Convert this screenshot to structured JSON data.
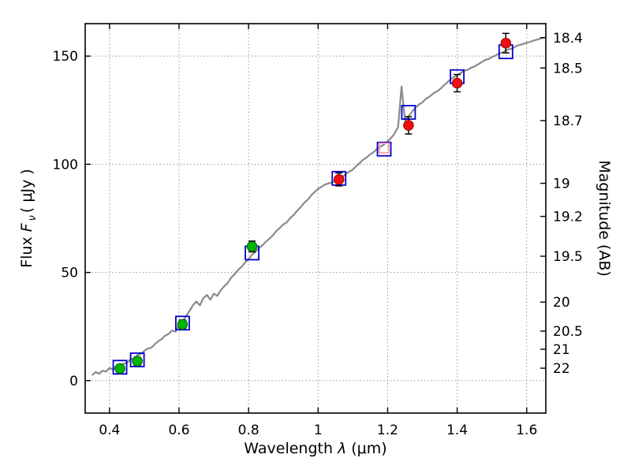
{
  "figure": {
    "background": "#ffffff",
    "frame_color": "#000000",
    "grid_color": "#888888",
    "tick_color": "#000000"
  },
  "chart_data": {
    "type": "line",
    "title": "",
    "xlabel": {
      "prefix": "Wavelength",
      "symbol": "λ",
      "suffix": "(μm)"
    },
    "ylabel_left": {
      "word": "Flux",
      "symbol": "F",
      "subscript": "ν",
      "unit": "( μJy )"
    },
    "ylabel_right": "Magnitude (AB)",
    "xlim": [
      0.33,
      1.655
    ],
    "ylim": [
      -15,
      165
    ],
    "x_ticks": [
      0.4,
      0.6,
      0.8,
      1.0,
      1.2,
      1.4,
      1.6
    ],
    "x_tick_labels": [
      "0.4",
      "0.6",
      "0.8",
      "1",
      "1.2",
      "1.4",
      "1.6"
    ],
    "y_ticks": [
      0,
      50,
      100,
      150
    ],
    "y_tick_labels": [
      "0",
      "50",
      "100",
      "150"
    ],
    "right_ticks": [
      {
        "label": "18.4",
        "flux": 158.5
      },
      {
        "label": "18.5",
        "flux": 144.5
      },
      {
        "label": "18.7",
        "flux": 120.2
      },
      {
        "label": "19",
        "flux": 91.2
      },
      {
        "label": "19.2",
        "flux": 75.9
      },
      {
        "label": "19.5",
        "flux": 57.5
      },
      {
        "label": "20",
        "flux": 36.3
      },
      {
        "label": "20.5",
        "flux": 22.9
      },
      {
        "label": "21",
        "flux": 14.5
      },
      {
        "label": "22",
        "flux": 5.75
      }
    ],
    "grid": {
      "on": true,
      "style": "dotted",
      "color": "#888888"
    },
    "spectrum": {
      "name": "model-spectrum",
      "color": "#8a8a8a",
      "points": [
        [
          0.35,
          2.5
        ],
        [
          0.36,
          4.0
        ],
        [
          0.37,
          3.2
        ],
        [
          0.38,
          4.6
        ],
        [
          0.39,
          4.2
        ],
        [
          0.4,
          5.8
        ],
        [
          0.41,
          5.2
        ],
        [
          0.42,
          6.8
        ],
        [
          0.43,
          6.4
        ],
        [
          0.44,
          7.8
        ],
        [
          0.45,
          8.2
        ],
        [
          0.46,
          9.8
        ],
        [
          0.47,
          10.2
        ],
        [
          0.48,
          11.8
        ],
        [
          0.49,
          12.3
        ],
        [
          0.5,
          13.8
        ],
        [
          0.51,
          14.8
        ],
        [
          0.52,
          15.2
        ],
        [
          0.53,
          16.8
        ],
        [
          0.54,
          18.2
        ],
        [
          0.55,
          19.2
        ],
        [
          0.56,
          20.8
        ],
        [
          0.57,
          21.6
        ],
        [
          0.58,
          23.2
        ],
        [
          0.59,
          22.6
        ],
        [
          0.6,
          25.8
        ],
        [
          0.61,
          27.2
        ],
        [
          0.62,
          29.8
        ],
        [
          0.63,
          32.2
        ],
        [
          0.64,
          34.8
        ],
        [
          0.65,
          36.6
        ],
        [
          0.66,
          34.8
        ],
        [
          0.67,
          38.2
        ],
        [
          0.68,
          39.6
        ],
        [
          0.69,
          37.4
        ],
        [
          0.7,
          40.2
        ],
        [
          0.71,
          39.2
        ],
        [
          0.72,
          41.8
        ],
        [
          0.73,
          43.6
        ],
        [
          0.74,
          45.2
        ],
        [
          0.75,
          47.6
        ],
        [
          0.76,
          49.2
        ],
        [
          0.77,
          51.2
        ],
        [
          0.78,
          52.6
        ],
        [
          0.79,
          54.6
        ],
        [
          0.8,
          56.2
        ],
        [
          0.81,
          58.2
        ],
        [
          0.82,
          59.6
        ],
        [
          0.83,
          61.2
        ],
        [
          0.84,
          62.6
        ],
        [
          0.85,
          64.2
        ],
        [
          0.86,
          65.6
        ],
        [
          0.87,
          67.2
        ],
        [
          0.88,
          69.2
        ],
        [
          0.89,
          70.6
        ],
        [
          0.9,
          72.2
        ],
        [
          0.91,
          73.2
        ],
        [
          0.92,
          75.2
        ],
        [
          0.93,
          76.6
        ],
        [
          0.94,
          78.6
        ],
        [
          0.95,
          80.2
        ],
        [
          0.96,
          82.2
        ],
        [
          0.97,
          83.6
        ],
        [
          0.98,
          85.6
        ],
        [
          0.99,
          87.2
        ],
        [
          1.0,
          88.6
        ],
        [
          1.01,
          89.6
        ],
        [
          1.02,
          90.6
        ],
        [
          1.03,
          91.2
        ],
        [
          1.04,
          91.6
        ],
        [
          1.05,
          92.6
        ],
        [
          1.06,
          93.2
        ],
        [
          1.07,
          94.2
        ],
        [
          1.08,
          95.6
        ],
        [
          1.09,
          96.6
        ],
        [
          1.1,
          97.6
        ],
        [
          1.11,
          99.2
        ],
        [
          1.12,
          100.6
        ],
        [
          1.13,
          102.2
        ],
        [
          1.14,
          103.2
        ],
        [
          1.15,
          104.6
        ],
        [
          1.16,
          105.6
        ],
        [
          1.17,
          107.2
        ],
        [
          1.18,
          108.2
        ],
        [
          1.19,
          109.2
        ],
        [
          1.2,
          110.6
        ],
        [
          1.21,
          112.2
        ],
        [
          1.22,
          114.2
        ],
        [
          1.23,
          117.2
        ],
        [
          1.24,
          136.0
        ],
        [
          1.25,
          120.2
        ],
        [
          1.26,
          122.2
        ],
        [
          1.27,
          124.2
        ],
        [
          1.28,
          126.2
        ],
        [
          1.29,
          127.6
        ],
        [
          1.3,
          128.6
        ],
        [
          1.31,
          130.2
        ],
        [
          1.32,
          131.2
        ],
        [
          1.33,
          132.6
        ],
        [
          1.34,
          133.6
        ],
        [
          1.35,
          134.6
        ],
        [
          1.36,
          136.2
        ],
        [
          1.37,
          137.6
        ],
        [
          1.38,
          139.2
        ],
        [
          1.39,
          140.2
        ],
        [
          1.4,
          141.2
        ],
        [
          1.41,
          142.2
        ],
        [
          1.42,
          143.2
        ],
        [
          1.43,
          143.6
        ],
        [
          1.44,
          144.6
        ],
        [
          1.45,
          145.2
        ],
        [
          1.46,
          146.2
        ],
        [
          1.47,
          147.2
        ],
        [
          1.48,
          148.2
        ],
        [
          1.49,
          148.6
        ],
        [
          1.5,
          149.6
        ],
        [
          1.51,
          150.2
        ],
        [
          1.52,
          151.2
        ],
        [
          1.53,
          151.6
        ],
        [
          1.54,
          152.6
        ],
        [
          1.55,
          153.2
        ],
        [
          1.56,
          153.6
        ],
        [
          1.57,
          154.6
        ],
        [
          1.58,
          155.2
        ],
        [
          1.59,
          155.6
        ],
        [
          1.6,
          156.2
        ],
        [
          1.61,
          156.6
        ],
        [
          1.62,
          157.2
        ],
        [
          1.63,
          157.6
        ],
        [
          1.64,
          158.2
        ],
        [
          1.65,
          158.6
        ]
      ]
    },
    "series": [
      {
        "name": "model-photometry",
        "marker": "square-open",
        "color": "#0000cc",
        "size": 17,
        "points": [
          [
            0.43,
            6.2
          ],
          [
            0.48,
            9.6
          ],
          [
            0.61,
            26.6
          ],
          [
            0.81,
            59.0
          ],
          [
            1.06,
            93.5
          ],
          [
            1.19,
            107.0
          ],
          [
            1.26,
            124.0
          ],
          [
            1.4,
            140.5
          ],
          [
            1.54,
            152.0
          ]
        ]
      },
      {
        "name": "limit-photometry",
        "marker": "square-open",
        "color": "#ff9db0",
        "size": 12,
        "points": [
          [
            1.19,
            107.5
          ]
        ]
      },
      {
        "name": "observed-optical",
        "marker": "circle",
        "color": "#00b400",
        "edge": "#005500",
        "size": 6.3,
        "points": [
          [
            0.43,
            5.6,
            1.8
          ],
          [
            0.48,
            9.0,
            1.8
          ],
          [
            0.61,
            26.0,
            2.0
          ],
          [
            0.81,
            62.0,
            2.5
          ]
        ]
      },
      {
        "name": "observed-infrared",
        "marker": "circle",
        "color": "#ee1010",
        "edge": "#880000",
        "size": 6.3,
        "points": [
          [
            1.06,
            93.0,
            3.0
          ],
          [
            1.26,
            118.0,
            4.0
          ],
          [
            1.4,
            137.5,
            4.0
          ],
          [
            1.54,
            156.0,
            4.5
          ]
        ]
      }
    ]
  }
}
